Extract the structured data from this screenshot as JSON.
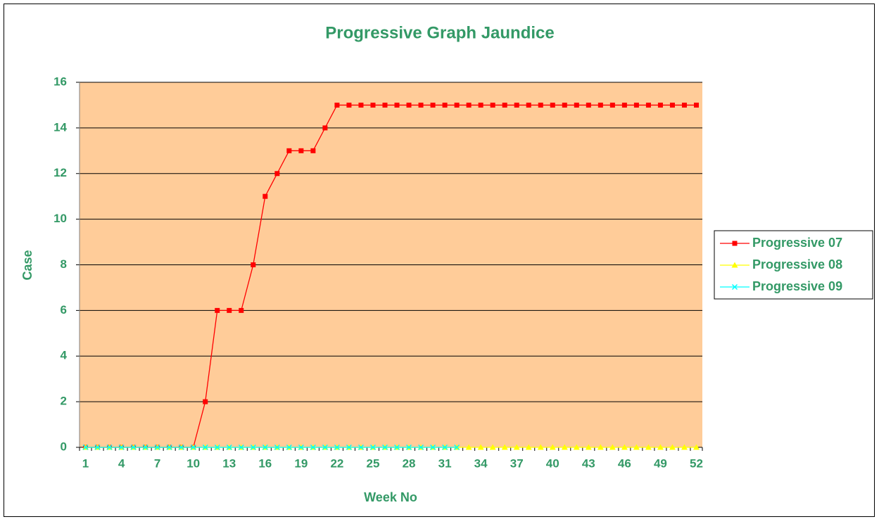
{
  "chart_data": {
    "type": "line",
    "title": "Progressive Graph Jaundice",
    "x_label": "Week No",
    "y_label": "Case",
    "categories": [
      1,
      null,
      null,
      4,
      null,
      null,
      7,
      null,
      null,
      10,
      null,
      null,
      13,
      null,
      null,
      16,
      null,
      null,
      19,
      null,
      null,
      22,
      null,
      null,
      25,
      null,
      null,
      28,
      null,
      null,
      31,
      null,
      null,
      34,
      null,
      null,
      37,
      null,
      null,
      40,
      null,
      null,
      43,
      null,
      null,
      46,
      null,
      null,
      49,
      null,
      null,
      52
    ],
    "series": [
      {
        "name": "Progressive 07",
        "color": "#ff0000",
        "marker": "square",
        "values": [
          0,
          0,
          0,
          0,
          0,
          0,
          0,
          0,
          0,
          0,
          2,
          6,
          6,
          6,
          8,
          11,
          12,
          13,
          13,
          13,
          14,
          15,
          15,
          15,
          15,
          15,
          15,
          15,
          15,
          15,
          15,
          15,
          15,
          15,
          15,
          15,
          15,
          15,
          15,
          15,
          15,
          15,
          15,
          15,
          15,
          15,
          15,
          15,
          15,
          15,
          15,
          15
        ]
      },
      {
        "name": "Progressive 08",
        "color": "#ffff00",
        "marker": "triangle",
        "values": [
          0,
          0,
          0,
          0,
          0,
          0,
          0,
          0,
          0,
          0,
          0,
          0,
          0,
          0,
          0,
          0,
          0,
          0,
          0,
          0,
          0,
          0,
          0,
          0,
          0,
          0,
          0,
          0,
          0,
          0,
          0,
          0,
          0,
          0,
          0,
          0,
          0,
          0,
          0,
          0,
          0,
          0,
          0,
          0,
          0,
          0,
          0,
          0,
          0,
          0,
          0,
          0
        ]
      },
      {
        "name": "Progressive 09",
        "color": "#00ffff",
        "marker": "x",
        "values": [
          0,
          0,
          0,
          0,
          0,
          0,
          0,
          0,
          0,
          0,
          0,
          0,
          0,
          0,
          0,
          0,
          0,
          0,
          0,
          0,
          0,
          0,
          0,
          0,
          0,
          0,
          0,
          0,
          0,
          0,
          0,
          0,
          null,
          null,
          null,
          null,
          null,
          null,
          null,
          null,
          null,
          null,
          null,
          null,
          null,
          null,
          null,
          null,
          null,
          null,
          null,
          null
        ]
      }
    ],
    "ylim": [
      0,
      16
    ],
    "yticks": [
      0,
      2,
      4,
      6,
      8,
      10,
      12,
      14,
      16
    ],
    "grid": true,
    "legend": "right",
    "plot_background": "#ffcc99",
    "text_color": "#339966"
  }
}
